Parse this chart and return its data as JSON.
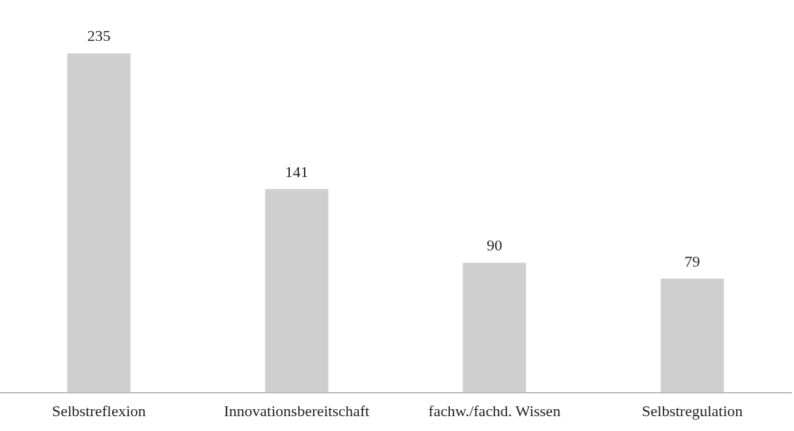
{
  "chart_data": {
    "type": "bar",
    "categories": [
      "Selbstreflexion",
      "Innovationsbereitschaft",
      "fachw./fachd. Wissen",
      "Selbstregulation"
    ],
    "values": [
      235,
      141,
      90,
      79
    ],
    "color": "#d0cfcf",
    "data_labels": true,
    "grid": false,
    "legend": false
  }
}
